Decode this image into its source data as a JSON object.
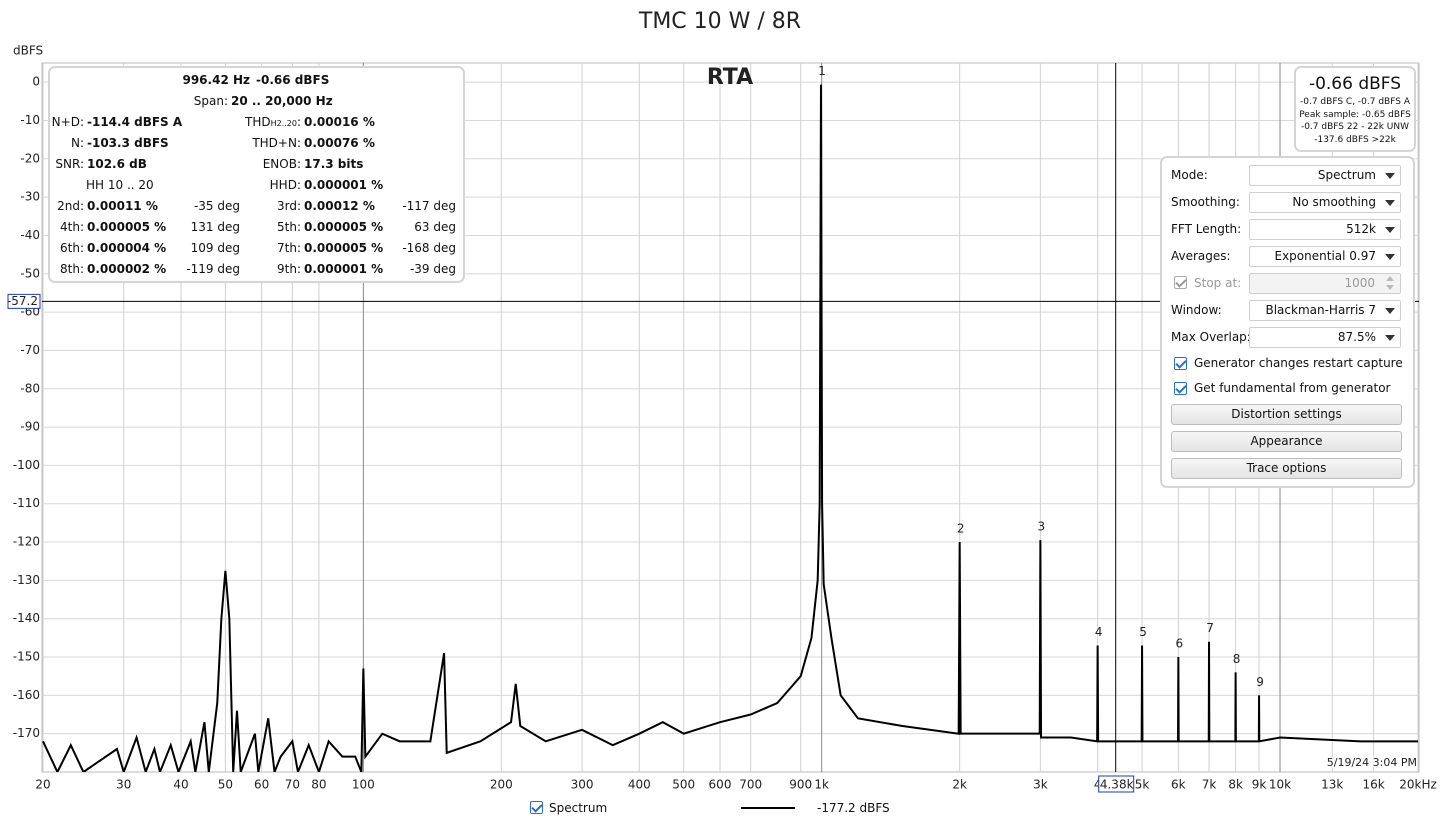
{
  "chart_data": {
    "type": "line",
    "title": "TMC 10 W / 8R",
    "y_label": "dBFS",
    "plot_label": "RTA",
    "xscale": "log",
    "xlim": [
      20,
      20000
    ],
    "ylim": [
      -180,
      5
    ],
    "grid": true,
    "xticks": [
      20,
      30,
      40,
      50,
      60,
      70,
      80,
      100,
      200,
      300,
      400,
      500,
      600,
      700,
      900,
      {
        "value": 1000,
        "label": "1k"
      },
      {
        "value": 2000,
        "label": "2k"
      },
      {
        "value": 3000,
        "label": "3k"
      },
      {
        "value": 4000,
        "label": "4"
      },
      {
        "value": 5000,
        "label": "5k"
      },
      {
        "value": 6000,
        "label": "6k"
      },
      {
        "value": 7000,
        "label": "7k"
      },
      {
        "value": 8000,
        "label": "8k"
      },
      {
        "value": 9000,
        "label": "9k"
      },
      {
        "value": 10000,
        "label": "10k"
      },
      {
        "value": 13000,
        "label": "13k"
      },
      {
        "value": 16000,
        "label": "16k"
      },
      {
        "value": 20000,
        "label": "20kHz"
      }
    ],
    "yticks": [
      0,
      -10,
      -20,
      -30,
      -40,
      -50,
      -60,
      -70,
      -80,
      -90,
      -100,
      -110,
      -120,
      -130,
      -140,
      -150,
      -160,
      -170
    ],
    "x": [
      20,
      21.5,
      23,
      24.5,
      29,
      30,
      32,
      33.5,
      35,
      36,
      38,
      39.5,
      42,
      43,
      45,
      46,
      48,
      49,
      50,
      51,
      52,
      53,
      54,
      58,
      59,
      62,
      64,
      66,
      70,
      72,
      76,
      80,
      84,
      90,
      96,
      99,
      100,
      101,
      110,
      120,
      140,
      150,
      152,
      180,
      210,
      215,
      220,
      250,
      300,
      350,
      400,
      450,
      500,
      600,
      700,
      800,
      900,
      950,
      980,
      990,
      996.42,
      1002,
      1010,
      1050,
      1100,
      1200,
      1500,
      1990,
      2000,
      2010,
      2500,
      2990,
      3000,
      3010,
      3500,
      3990,
      4000,
      4010,
      4990,
      5000,
      5010,
      5990,
      6000,
      6010,
      6990,
      7000,
      7010,
      7990,
      8000,
      8010,
      8990,
      9000,
      9010,
      10000,
      15000,
      20000
    ],
    "series": [
      {
        "name": "Spectrum",
        "color": "#000000",
        "values": [
          -172,
          -180,
          -173,
          -180,
          -174,
          -180,
          -171,
          -180,
          -174,
          -180,
          -173,
          -180,
          -172,
          -180,
          -167,
          -180,
          -162,
          -140,
          -127.5,
          -140,
          -180,
          -164,
          -180,
          -170,
          -180,
          -166,
          -180,
          -176,
          -172,
          -180,
          -173,
          -180,
          -172,
          -176,
          -176,
          -180,
          -153,
          -176,
          -170,
          -172,
          -172,
          -149,
          -175,
          -172,
          -167,
          -157,
          -168,
          -172,
          -169,
          -173,
          -170,
          -167,
          -170,
          -167,
          -165,
          -162,
          -155,
          -145,
          -130,
          -110,
          -0.66,
          -110,
          -131,
          -145,
          -160,
          -166,
          -168,
          -170,
          -120,
          -170,
          -170,
          -170,
          -119.5,
          -171,
          -171,
          -172,
          -147,
          -172,
          -172,
          -147,
          -172,
          -172,
          -150,
          -172,
          -172,
          -146,
          -172,
          -172,
          -154,
          -172,
          -172,
          -160,
          -172,
          -171,
          -172,
          -172
        ]
      }
    ],
    "peaks": [
      {
        "label": "1",
        "x": 996.42,
        "y": -0.66
      },
      {
        "label": "2",
        "x": 2000,
        "y": -120
      },
      {
        "label": "3",
        "x": 3000,
        "y": -119.5
      },
      {
        "label": "4",
        "x": 4000,
        "y": -147
      },
      {
        "label": "5",
        "x": 5000,
        "y": -147
      },
      {
        "label": "6",
        "x": 6000,
        "y": -150
      },
      {
        "label": "7",
        "x": 7000,
        "y": -146
      },
      {
        "label": "8",
        "x": 8000,
        "y": -154
      },
      {
        "label": "9",
        "x": 9000,
        "y": -160
      }
    ],
    "cursor": {
      "x": 4380,
      "x_label": "4.38k",
      "y": -57.2
    },
    "legend_value": "-177.2 dBFS",
    "timestamp": "5/19/24 3:04 PM"
  },
  "stats": {
    "freq": "996.42 Hz",
    "level": "-0.66 dBFS",
    "span_label": "Span:",
    "span": "20 .. 20,000 Hz",
    "left": [
      {
        "label": "N+D:",
        "value": "-114.4 dBFS A"
      },
      {
        "label": "N:",
        "value": "-103.3 dBFS"
      },
      {
        "label": "SNR:",
        "value": "102.6 dB"
      },
      {
        "label": "HH 10 .. 20"
      }
    ],
    "right": [
      {
        "label": "THD",
        "sub": "H2..20",
        "tail": ":",
        "value": "0.00016 %"
      },
      {
        "label": "THD+N:",
        "value": "0.00076 %"
      },
      {
        "label": "ENOB:",
        "value": "17.3 bits"
      },
      {
        "label": "HHD:",
        "value": "0.000001 %"
      }
    ],
    "harmonics": [
      {
        "name": "2nd:",
        "pct": "0.00011 %",
        "phase": "-35 deg"
      },
      {
        "name": "3rd:",
        "pct": "0.00012 %",
        "phase": "-117 deg"
      },
      {
        "name": "4th:",
        "pct": "0.000005 %",
        "phase": "131 deg"
      },
      {
        "name": "5th:",
        "pct": "0.000005 %",
        "phase": "63 deg"
      },
      {
        "name": "6th:",
        "pct": "0.000004 %",
        "phase": "109 deg"
      },
      {
        "name": "7th:",
        "pct": "0.000005 %",
        "phase": "-168 deg"
      },
      {
        "name": "8th:",
        "pct": "0.000002 %",
        "phase": "-119 deg"
      },
      {
        "name": "9th:",
        "pct": "0.000001 %",
        "phase": "-39 deg"
      }
    ]
  },
  "level_box": {
    "main": "-0.66 dBFS",
    "lines": [
      "-0.7 dBFS C, -0.7 dBFS A",
      "Peak sample: -0.65 dBFS",
      "-0.7 dBFS 22 - 22k UNW",
      "-137.6 dBFS >22k"
    ]
  },
  "controls": {
    "fields": [
      {
        "label": "Mode:",
        "value": "Spectrum"
      },
      {
        "label": "Smoothing:",
        "value": "No smoothing"
      },
      {
        "label": "FFT Length:",
        "value": "512k"
      },
      {
        "label": "Averages:",
        "value": "Exponential 0.97"
      },
      {
        "label": "Stop at:",
        "value": "1000",
        "disabled": true
      },
      {
        "label": "Window:",
        "value": "Blackman-Harris 7"
      },
      {
        "label": "Max Overlap:",
        "value": "87.5%"
      }
    ],
    "checkboxes": [
      "Generator changes restart capture",
      "Get fundamental from generator"
    ],
    "buttons": [
      "Distortion settings",
      "Appearance",
      "Trace options"
    ]
  }
}
